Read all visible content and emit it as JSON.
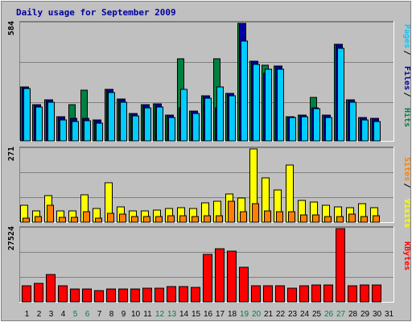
{
  "colors": {
    "background": "#c0c0c0",
    "title": "#0000a0",
    "pages": "#00ccff",
    "files": "#0000a0",
    "hits": "#008040",
    "sites": "#ff8000",
    "visits": "#ffff00",
    "kbytes": "#ff0000",
    "weekend_label": "#008040",
    "gridline": "#808080"
  },
  "chart_data": {
    "type": "bar",
    "title": "Daily usage for September 2009",
    "categories": [
      "1",
      "2",
      "3",
      "4",
      "5",
      "6",
      "7",
      "8",
      "9",
      "10",
      "11",
      "12",
      "13",
      "14",
      "15",
      "16",
      "17",
      "18",
      "19",
      "20",
      "21",
      "22",
      "23",
      "24",
      "25",
      "26",
      "27",
      "28",
      "29",
      "30",
      "31"
    ],
    "weekend_days": [
      "5",
      "6",
      "12",
      "13",
      "19",
      "20",
      "26",
      "27"
    ],
    "panels": [
      {
        "id": "top",
        "max_label": "584",
        "ylim": [
          0,
          584
        ],
        "right_labels": [
          {
            "text": "Pages",
            "color": "#00ccff"
          },
          {
            "text": "Files",
            "color": "#0000a0"
          },
          {
            "text": "Hits",
            "color": "#008040"
          }
        ],
        "series": [
          {
            "name": "Hits",
            "color": "#008040",
            "values": [
              269,
              180,
              202,
              119,
              178,
              250,
              104,
              256,
              208,
              136,
              179,
              183,
              127,
              406,
              148,
              223,
              408,
              235,
              584,
              395,
              377,
              370,
              121,
              129,
              216,
              129,
              478,
              203,
              116,
              112,
              0
            ]
          },
          {
            "name": "Files",
            "color": "#0000a0",
            "values": [
              269,
              180,
              202,
              119,
              111,
              111,
              104,
              256,
              208,
              136,
              179,
              183,
              127,
              163,
              148,
              223,
              165,
              235,
              584,
              395,
              337,
              370,
              121,
              129,
              162,
              129,
              478,
              203,
              116,
              112,
              0
            ]
          },
          {
            "name": "Pages",
            "color": "#00ccff",
            "values": [
              259,
              168,
              190,
              105,
              96,
              98,
              87,
              238,
              192,
              124,
              163,
              168,
              114,
              256,
              135,
              213,
              269,
              223,
              496,
              382,
              355,
              355,
              115,
              119,
              158,
              117,
              460,
              190,
              104,
              97,
              0
            ]
          }
        ]
      },
      {
        "id": "middle",
        "max_label": "271",
        "ylim": [
          0,
          271
        ],
        "right_labels": [
          {
            "text": "Sites",
            "color": "#ff8000"
          },
          {
            "text": "Visits",
            "color": "#ffff00"
          }
        ],
        "series": [
          {
            "name": "Visits",
            "color": "#ffff00",
            "values": [
              62,
              43,
              98,
              43,
              43,
              101,
              50,
              146,
              56,
              43,
              43,
              46,
              50,
              53,
              50,
              72,
              78,
              104,
              90,
              271,
              163,
              119,
              211,
              81,
              75,
              62,
              56,
              53,
              69,
              53,
              0
            ]
          },
          {
            "name": "Sites",
            "color": "#ff8000",
            "values": [
              15,
              21,
              62,
              18,
              18,
              38,
              15,
              34,
              31,
              21,
              21,
              21,
              24,
              24,
              21,
              24,
              24,
              78,
              38,
              69,
              43,
              38,
              38,
              27,
              27,
              21,
              21,
              31,
              21,
              24,
              0
            ]
          }
        ]
      },
      {
        "id": "bottom",
        "max_label": "27524",
        "ylim": [
          0,
          27524
        ],
        "right_labels": [
          {
            "text": "KBytes",
            "color": "#ff0000"
          }
        ],
        "series": [
          {
            "name": "KBytes",
            "color": "#ff0000",
            "values": [
              5900,
              6900,
              10400,
              6200,
              4700,
              4700,
              4200,
              4700,
              4700,
              4700,
              5000,
              5000,
              5700,
              5700,
              5400,
              17800,
              20000,
              19200,
              12900,
              6000,
              6000,
              6200,
              5200,
              6200,
              6400,
              6400,
              27524,
              6000,
              6500,
              6500,
              0
            ]
          }
        ]
      }
    ]
  }
}
